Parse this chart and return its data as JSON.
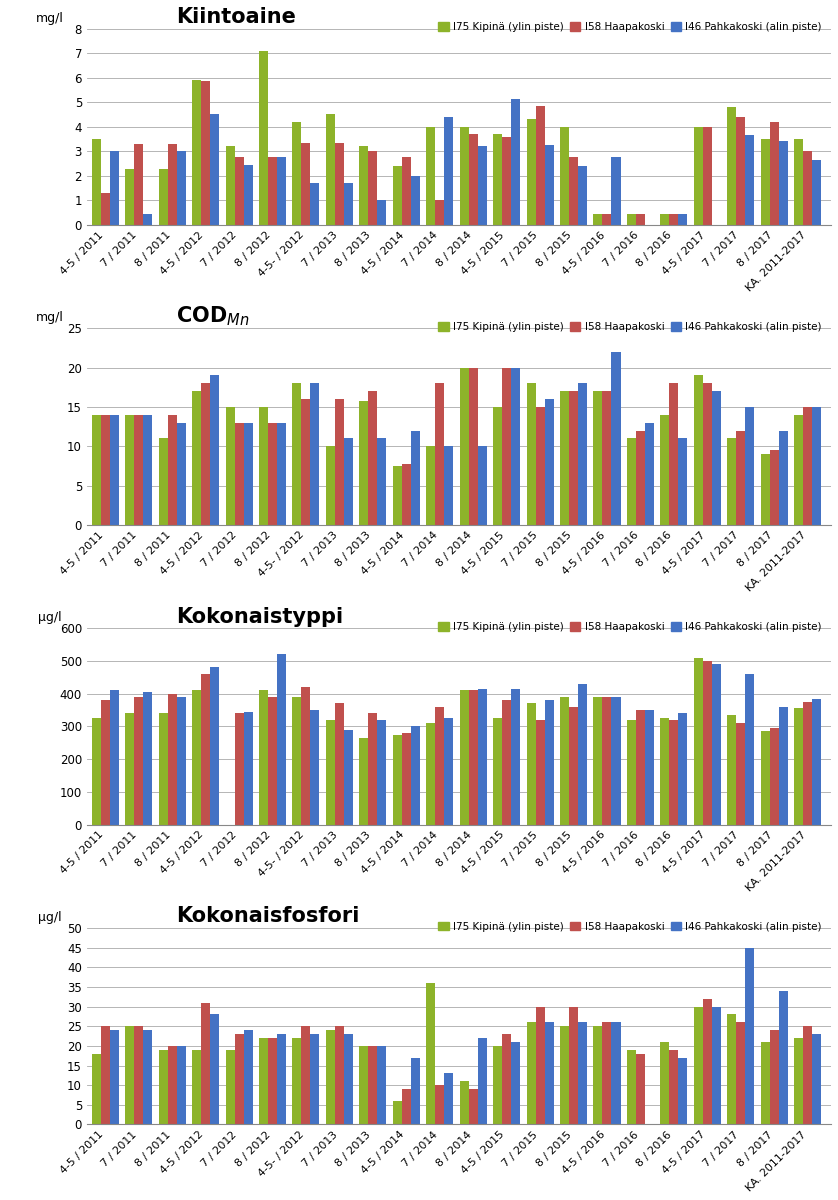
{
  "categories": [
    "4-5 / 2011",
    "7 / 2011",
    "8 / 2011",
    "4-5 / 2012",
    "7 / 2012",
    "8 / 2012",
    "4-5- / 2012",
    "7 / 2013",
    "8 / 2013",
    "4-5 / 2014",
    "7 / 2014",
    "8 / 2014",
    "4-5 / 2015",
    "7 / 2015",
    "8 / 2015",
    "4-5 / 2016",
    "7 / 2016",
    "8 / 2016",
    "4-5 / 2017",
    "7 / 2017",
    "8 / 2017",
    "KA. 2011-2017"
  ],
  "chart1": {
    "title": "Kiintoaine",
    "ylabel": "mg/l",
    "ylim": [
      0,
      8
    ],
    "yticks": [
      0,
      1,
      2,
      3,
      4,
      5,
      6,
      7,
      8
    ],
    "green": [
      3.5,
      2.3,
      2.3,
      5.9,
      3.2,
      7.1,
      4.2,
      4.5,
      3.2,
      2.4,
      4.0,
      4.0,
      3.7,
      4.3,
      4.0,
      0.45,
      0.45,
      0.45,
      4.0,
      4.8,
      3.5,
      3.5
    ],
    "red": [
      1.3,
      3.3,
      3.3,
      5.85,
      2.75,
      2.75,
      3.35,
      3.35,
      3.0,
      2.75,
      1.0,
      3.7,
      3.6,
      4.85,
      2.75,
      0.45,
      0.45,
      0.45,
      4.0,
      4.4,
      4.2,
      3.0
    ],
    "blue": [
      3.0,
      0.45,
      3.0,
      4.5,
      2.45,
      2.75,
      1.7,
      1.7,
      1.0,
      2.0,
      4.4,
      3.2,
      5.15,
      3.25,
      2.4,
      2.75,
      0.0,
      0.45,
      0.0,
      3.65,
      3.4,
      2.65
    ]
  },
  "chart2": {
    "title": "COD",
    "title_sub": "Mn",
    "ylabel": "mg/l",
    "ylim": [
      0,
      25
    ],
    "yticks": [
      0,
      5,
      10,
      15,
      20,
      25
    ],
    "green": [
      14,
      14,
      11,
      17,
      15,
      15,
      18,
      10,
      15.8,
      7.5,
      10,
      20,
      15,
      18,
      17,
      17,
      11,
      14,
      19,
      11,
      9,
      14
    ],
    "red": [
      14,
      14,
      14,
      18,
      13,
      13,
      16,
      16,
      17,
      7.8,
      18,
      20,
      20,
      15,
      17,
      17,
      12,
      18,
      18,
      12,
      9.5,
      15
    ],
    "blue": [
      14,
      14,
      13,
      19,
      13,
      13,
      18,
      11,
      11,
      12,
      10,
      10,
      20,
      16,
      18,
      22,
      13,
      11,
      17,
      15,
      12,
      15
    ]
  },
  "chart3": {
    "title": "Kokonaistyppi",
    "ylabel": "μg/l",
    "ylim": [
      0,
      600
    ],
    "yticks": [
      0,
      100,
      200,
      300,
      400,
      500,
      600
    ],
    "green": [
      325,
      340,
      340,
      410,
      0,
      410,
      390,
      320,
      265,
      275,
      310,
      410,
      325,
      370,
      390,
      390,
      320,
      325,
      510,
      335,
      285,
      355
    ],
    "red": [
      380,
      390,
      400,
      460,
      340,
      390,
      420,
      370,
      340,
      280,
      360,
      410,
      380,
      320,
      360,
      390,
      350,
      320,
      500,
      310,
      295,
      375
    ],
    "blue": [
      410,
      405,
      390,
      480,
      345,
      520,
      350,
      290,
      320,
      300,
      325,
      415,
      415,
      380,
      430,
      390,
      350,
      340,
      490,
      460,
      360,
      385
    ]
  },
  "chart4": {
    "title": "Kokonaisfosfori",
    "ylabel": "μg/l",
    "ylim": [
      0,
      50
    ],
    "yticks": [
      0,
      5,
      10,
      15,
      20,
      25,
      30,
      35,
      40,
      45,
      50
    ],
    "green": [
      18,
      25,
      19,
      19,
      19,
      22,
      22,
      24,
      20,
      6,
      36,
      11,
      20,
      26,
      25,
      25,
      19,
      21,
      30,
      28,
      21,
      22
    ],
    "red": [
      25,
      25,
      20,
      31,
      23,
      22,
      25,
      25,
      20,
      9,
      10,
      9,
      23,
      30,
      30,
      26,
      18,
      19,
      32,
      26,
      24,
      25
    ],
    "blue": [
      24,
      24,
      20,
      28,
      24,
      23,
      23,
      23,
      20,
      17,
      13,
      22,
      21,
      26,
      26,
      26,
      0,
      17,
      30,
      45,
      34,
      23
    ]
  },
  "colors": {
    "green": "#8DB32A",
    "red": "#C0504D",
    "blue": "#4472C4"
  },
  "legend_labels": [
    "I75 Kipinä (ylin piste)",
    "I58 Haapakoski",
    "I46 Pahkakoski (alin piste)"
  ]
}
